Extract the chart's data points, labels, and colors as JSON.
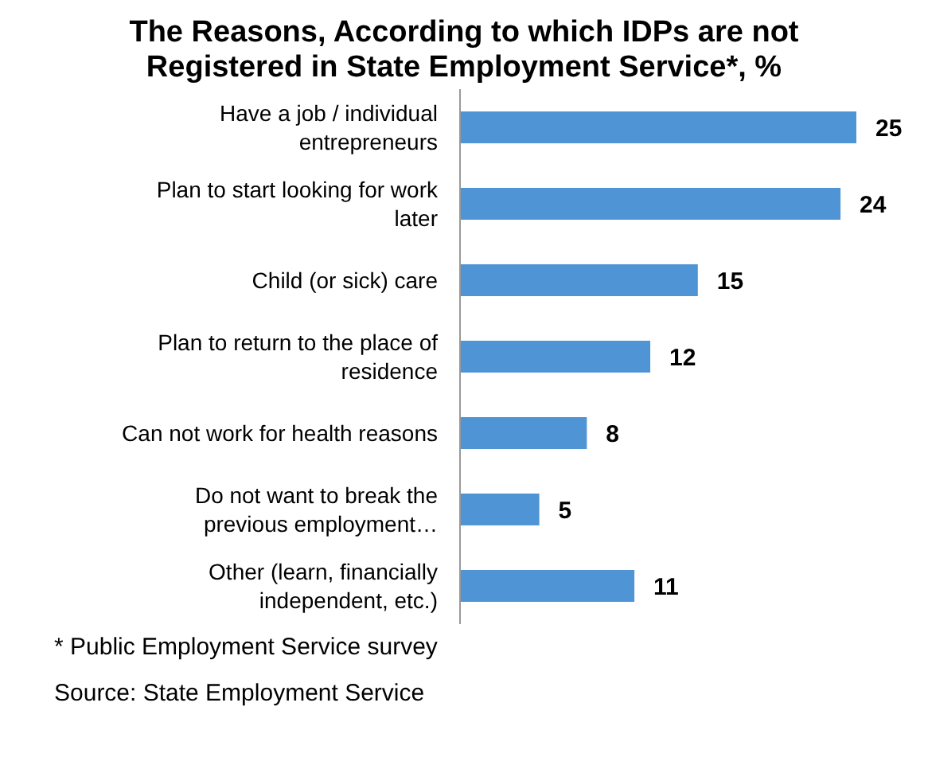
{
  "chart_data": {
    "type": "bar",
    "orientation": "horizontal",
    "title": "The Reasons, According to which IDPs are not Registered in State Employment Service*, %",
    "categories": [
      "Have a job / individual entrepreneurs",
      "Plan to start looking for work later",
      "Child (or sick) care",
      "Plan to return to the place of residence",
      "Can not work for health reasons",
      "Do not want to break the previous employment…",
      "Other (learn, financially independent, etc.)"
    ],
    "values": [
      25,
      24,
      15,
      12,
      8,
      5,
      11
    ],
    "color": "#4f94d4",
    "data_labels": true,
    "annotations": [
      "* Public Employment Service survey",
      "Source: State Employment Service"
    ]
  }
}
